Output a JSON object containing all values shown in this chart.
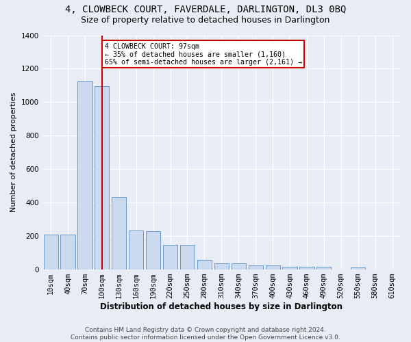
{
  "title": "4, CLOWBECK COURT, FAVERDALE, DARLINGTON, DL3 0BQ",
  "subtitle": "Size of property relative to detached houses in Darlington",
  "xlabel": "Distribution of detached houses by size in Darlington",
  "ylabel": "Number of detached properties",
  "footer1": "Contains HM Land Registry data © Crown copyright and database right 2024.",
  "footer2": "Contains public sector information licensed under the Open Government Licence v3.0.",
  "annotation_line1": "4 CLOWBECK COURT: 97sqm",
  "annotation_line2": "← 35% of detached houses are smaller (1,160)",
  "annotation_line3": "65% of semi-detached houses are larger (2,161) →",
  "bar_color": "#ccdaf0",
  "bar_edge_color": "#6699cc",
  "vline_color": "#cc0000",
  "vline_x": 3,
  "categories": [
    "10sqm",
    "40sqm",
    "70sqm",
    "100sqm",
    "130sqm",
    "160sqm",
    "190sqm",
    "220sqm",
    "250sqm",
    "280sqm",
    "310sqm",
    "340sqm",
    "370sqm",
    "400sqm",
    "430sqm",
    "460sqm",
    "490sqm",
    "520sqm",
    "550sqm",
    "580sqm",
    "610sqm"
  ],
  "values": [
    207,
    210,
    1125,
    1095,
    432,
    232,
    230,
    148,
    148,
    57,
    38,
    37,
    25,
    25,
    15,
    15,
    15,
    0,
    13,
    0,
    0
  ],
  "ylim": [
    0,
    1400
  ],
  "yticks": [
    0,
    200,
    400,
    600,
    800,
    1000,
    1200,
    1400
  ],
  "background_color": "#e8edf5",
  "grid_color": "#ffffff",
  "title_fontsize": 10,
  "subtitle_fontsize": 9,
  "xlabel_fontsize": 8.5,
  "ylabel_fontsize": 8,
  "tick_fontsize": 7.5,
  "footer_fontsize": 6.5
}
